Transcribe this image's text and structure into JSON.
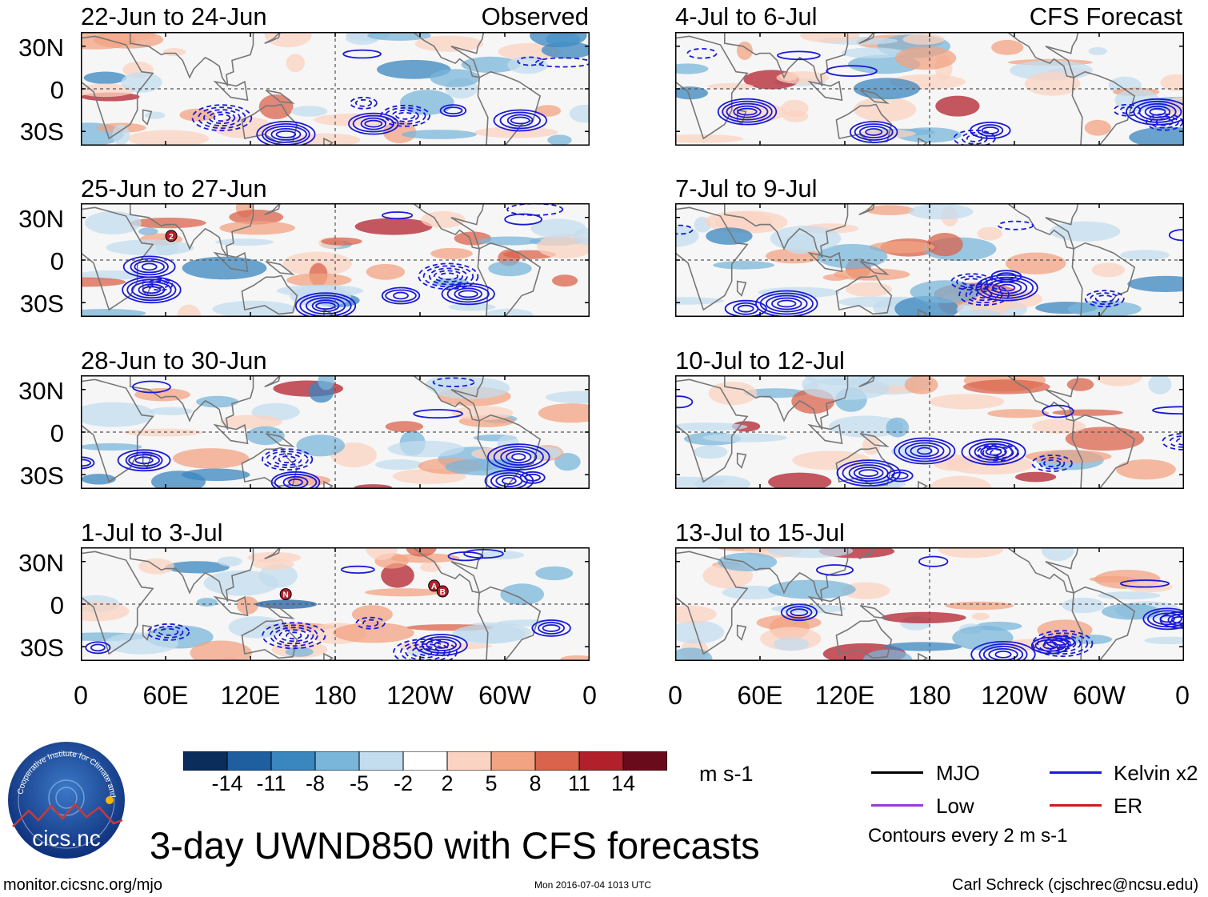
{
  "figure_title": "3-day UWND850 with CFS forecasts",
  "observed_label": "Observed",
  "forecast_label": "CFS Forecast",
  "panels": [
    {
      "title": "22-Jun to 24-Jun",
      "kind": "observed",
      "storm_markers": []
    },
    {
      "title": "25-Jun to 27-Jun",
      "kind": "observed",
      "storm_markers": [
        "2"
      ]
    },
    {
      "title": "28-Jun to 30-Jun",
      "kind": "observed",
      "storm_markers": []
    },
    {
      "title": "1-Jul to 3-Jul",
      "kind": "observed",
      "storm_markers": [
        "N",
        "A",
        "B"
      ]
    },
    {
      "title": "4-Jul to 6-Jul",
      "kind": "forecast",
      "storm_markers": []
    },
    {
      "title": "7-Jul to 9-Jul",
      "kind": "forecast",
      "storm_markers": []
    },
    {
      "title": "10-Jul to 12-Jul",
      "kind": "forecast",
      "storm_markers": []
    },
    {
      "title": "13-Jul to 15-Jul",
      "kind": "forecast",
      "storm_markers": []
    }
  ],
  "lat_labels": [
    "30N",
    "0",
    "30S"
  ],
  "lon_labels": [
    "0",
    "60E",
    "120E",
    "180",
    "120W",
    "60W",
    "0"
  ],
  "colorbar": {
    "units": "m s-1",
    "tick_labels": [
      "-14",
      "-11",
      "-8",
      "-5",
      "-2",
      "2",
      "5",
      "8",
      "11",
      "14"
    ],
    "colors": [
      "#0b2d5b",
      "#1f5fa0",
      "#3a86bf",
      "#7ab6d9",
      "#c3dcee",
      "#ffffff",
      "#fbd3c2",
      "#f2a382",
      "#d9634b",
      "#b2202c",
      "#6a0b1c"
    ]
  },
  "legend": {
    "items": [
      {
        "label": "MJO",
        "color": "#000000"
      },
      {
        "label": "Kelvin x2",
        "color": "#1a1ad6"
      },
      {
        "label": "Low",
        "color": "#9c3ad6"
      },
      {
        "label": "ER",
        "color": "#d01a1a"
      }
    ],
    "note": "Contours every 2 m s-1"
  },
  "logo_text": "cics.nc",
  "logo_ring_text": "Cooperative Institute for Climate and Satellites",
  "footer_left": "monitor.cicsnc.org/mjo",
  "footer_center": "Mon 2016-07-04 1013 UTC",
  "footer_right": "Carl Schreck (cjschrec@ncsu.edu)"
}
